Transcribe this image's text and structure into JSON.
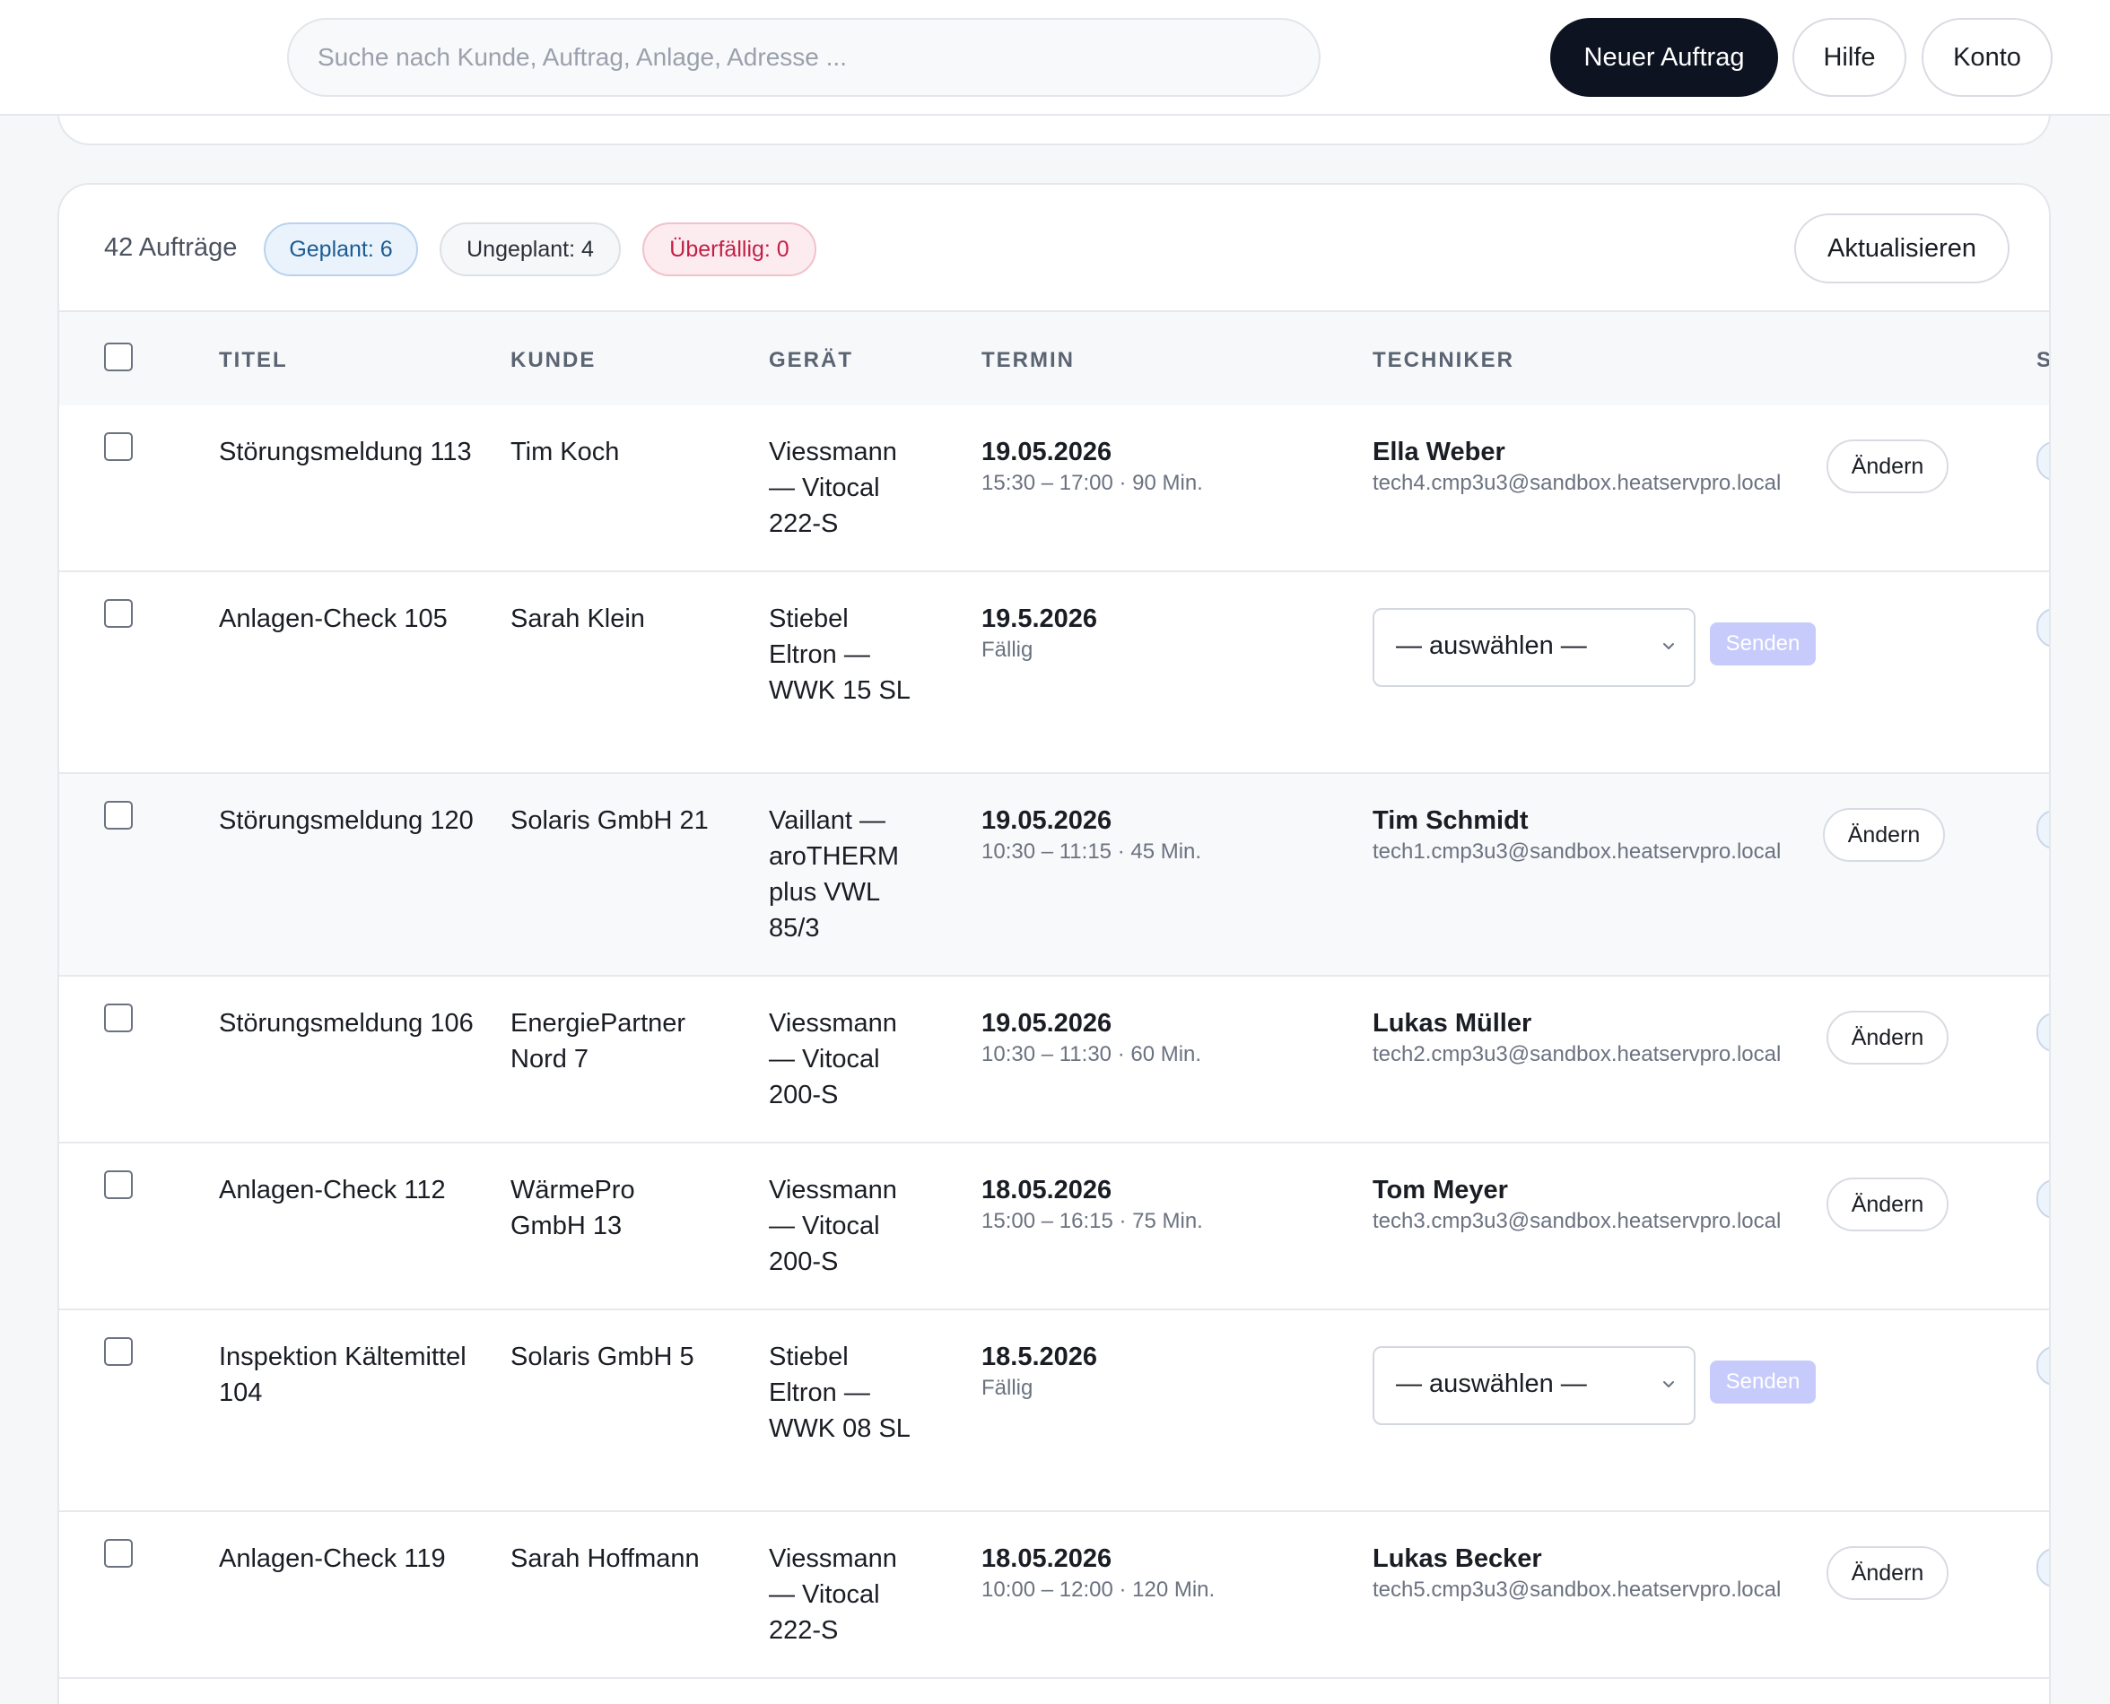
{
  "topbar": {
    "search_placeholder": "Suche nach Kunde, Auftrag, Anlage, Adresse ...",
    "new_order": "Neuer Auftrag",
    "help": "Hilfe",
    "account": "Konto"
  },
  "summary": {
    "count": "42 Aufträge",
    "planned": "Geplant: 6",
    "unplanned": "Ungeplant: 4",
    "overdue": "Überfällig: 0",
    "refresh": "Aktualisieren"
  },
  "columns": {
    "title": "TITEL",
    "customer": "KUNDE",
    "device": "GERÄT",
    "appointment": "TERMIN",
    "technician": "TECHNIKER",
    "status_partial": "S"
  },
  "labels": {
    "change": "Ändern",
    "select": "— auswählen —",
    "send": "Senden"
  },
  "rows": [
    {
      "title": "Störungsmeldung 113",
      "customer": "Tim Koch",
      "device": "Viessmann — Vitocal 222-S",
      "date": "19.05.2026",
      "time": "15:30 – 17:00 · 90 Min.",
      "tech_name": "Ella Weber",
      "tech_email": "tech4.cmp3u3@sandbox.heatservpro.local"
    },
    {
      "title": "Anlagen-Check 105",
      "customer": "Sarah Klein",
      "device": "Stiebel Eltron — WWK 15 SL",
      "date": "19.5.2026",
      "time": "Fällig",
      "tech_name": null,
      "tech_email": null
    },
    {
      "title": "Störungsmeldung 120",
      "customer": "Solaris GmbH 21",
      "device": "Vaillant — aroTHERM plus VWL 85/3",
      "date": "19.05.2026",
      "time": "10:30 – 11:15 · 45 Min.",
      "tech_name": "Tim Schmidt",
      "tech_email": "tech1.cmp3u3@sandbox.heatservpro.local"
    },
    {
      "title": "Störungsmeldung 106",
      "customer": "EnergiePartner Nord 7",
      "device": "Viessmann — Vitocal 200-S",
      "date": "19.05.2026",
      "time": "10:30 – 11:30 · 60 Min.",
      "tech_name": "Lukas Müller",
      "tech_email": "tech2.cmp3u3@sandbox.heatservpro.local"
    },
    {
      "title": "Anlagen-Check 112",
      "customer": "WärmePro GmbH 13",
      "device": "Viessmann — Vitocal 200-S",
      "date": "18.05.2026",
      "time": "15:00 – 16:15 · 75 Min.",
      "tech_name": "Tom Meyer",
      "tech_email": "tech3.cmp3u3@sandbox.heatservpro.local"
    },
    {
      "title": "Inspektion Kältemittel 104",
      "customer": "Solaris GmbH 5",
      "device": "Stiebel Eltron — WWK 08 SL",
      "date": "18.5.2026",
      "time": "Fällig",
      "tech_name": null,
      "tech_email": null
    },
    {
      "title": "Anlagen-Check 119",
      "customer": "Sarah Hoffmann",
      "device": "Viessmann — Vitocal 222-S",
      "date": "18.05.2026",
      "time": "10:00 – 12:00 · 120 Min.",
      "tech_name": "Lukas Becker",
      "tech_email": "tech5.cmp3u3@sandbox.heatservpro.local"
    }
  ]
}
